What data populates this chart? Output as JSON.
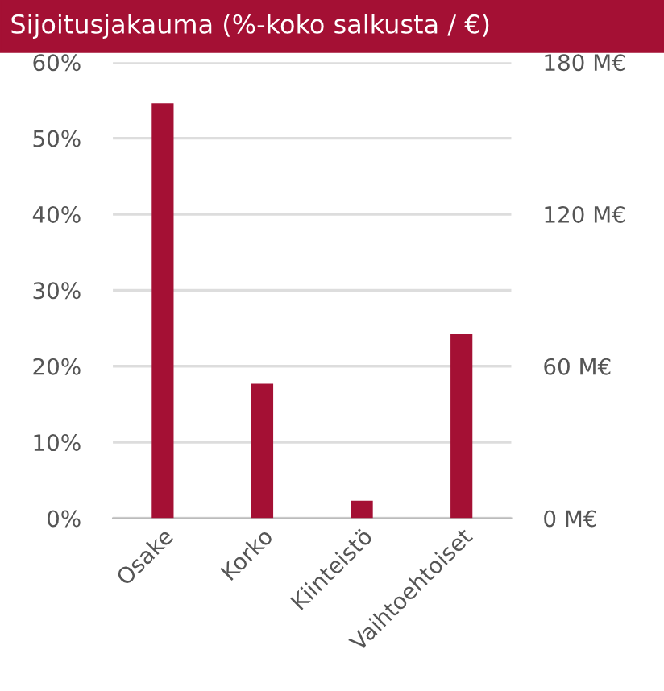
{
  "chart_data": {
    "type": "bar",
    "title": "Sijoitusjakauma (%-koko salkusta / €)",
    "categories": [
      "Osake",
      "Korko",
      "Kiinteistö",
      "Vaihtoehtoiset"
    ],
    "series": [
      {
        "color": "#a41034",
        "values": [
          54.6,
          17.7,
          2.3,
          24.2
        ]
      }
    ],
    "ylim": [
      0,
      60
    ],
    "yticks": [
      {
        "value": 0,
        "label": "0%"
      },
      {
        "value": 10,
        "label": "10%"
      },
      {
        "value": 20,
        "label": "20%"
      },
      {
        "value": 30,
        "label": "30%"
      },
      {
        "value": 40,
        "label": "40%"
      },
      {
        "value": 50,
        "label": "50%"
      },
      {
        "value": 60,
        "label": "60%"
      }
    ],
    "y2lim": [
      0,
      180
    ],
    "y2ticks": [
      {
        "value": 0,
        "label": "0 M€"
      },
      {
        "value": 60,
        "label": "60 M€"
      },
      {
        "value": 120,
        "label": "120 M€"
      },
      {
        "value": 180,
        "label": "180 M€"
      }
    ],
    "grid": "y"
  }
}
